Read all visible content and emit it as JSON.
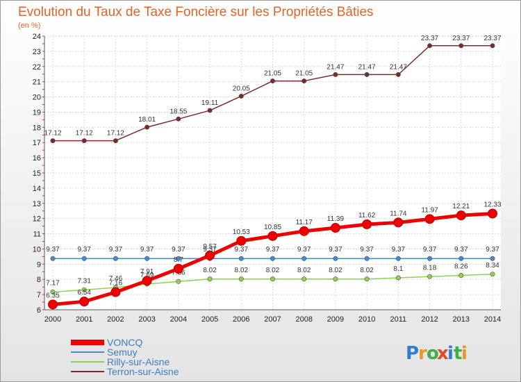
{
  "title": "Evolution du Taux de Taxe Foncière sur les Propriétés Bâties",
  "subtitle": "(en %)",
  "logo_text": "Proxiti",
  "colors": {
    "background_outer": "#e9e9e9",
    "plot_border": "#9a9a9a",
    "grid": "#d9d9d9",
    "title": "#e2622a",
    "legend_text": "#3c7fc4"
  },
  "chart_data": {
    "type": "line",
    "x": [
      2000,
      2001,
      2002,
      2003,
      2004,
      2005,
      2006,
      2007,
      2008,
      2009,
      2010,
      2011,
      2012,
      2013,
      2014
    ],
    "ylim": [
      6,
      24
    ],
    "yticks": [
      6,
      7,
      8,
      9,
      10,
      11,
      12,
      13,
      14,
      15,
      16,
      17,
      18,
      19,
      20,
      21,
      22,
      23,
      24
    ],
    "grid": true,
    "legend_position": "bottom-left",
    "series": [
      {
        "name": "Terron-sur-Aisne",
        "color": "#7a2a2a",
        "values": [
          17.12,
          17.12,
          17.12,
          18.01,
          18.55,
          19.11,
          20.05,
          21.05,
          21.05,
          21.47,
          21.47,
          21.47,
          23.37,
          23.37,
          23.37
        ],
        "labels": [
          "17.12",
          "17.12",
          "17.12",
          "18.01",
          "18.55",
          "19.11",
          "20.05",
          "21.05",
          "21.05",
          "21.47",
          "21.47",
          "21.47",
          "23.37",
          "23.37",
          "23.37"
        ]
      },
      {
        "name": "Semuy",
        "color": "#4a8ac9",
        "values": [
          9.37,
          9.37,
          9.37,
          9.37,
          9.37,
          9.37,
          9.37,
          9.37,
          9.37,
          9.37,
          9.37,
          9.37,
          9.37,
          9.37,
          9.37
        ],
        "labels": [
          "9.37",
          "9.37",
          "9.37",
          "9.37",
          "9.37",
          "9.37",
          "9.37",
          "9.37",
          "9.37",
          "9.37",
          "9.37",
          "9.37",
          "9.37",
          "9.37",
          "9.37"
        ]
      },
      {
        "name": "Rilly-sur-Aisne",
        "color": "#8fd14f",
        "values": [
          7.17,
          7.31,
          7.46,
          7.69,
          7.86,
          8.02,
          8.02,
          8.02,
          8.02,
          8.02,
          8.02,
          8.1,
          8.18,
          8.26,
          8.34
        ],
        "labels": [
          "7.17",
          "7.31",
          "7.46",
          "7.69",
          "7.86",
          "8.02",
          "8.02",
          "8.02",
          "8.02",
          "8.02",
          "8.02",
          "8.1",
          "8.18",
          "8.26",
          "8.34"
        ]
      },
      {
        "name": "VONCQ",
        "color": "#ee0000",
        "values": [
          6.35,
          6.54,
          7.16,
          7.91,
          8.7,
          9.57,
          10.53,
          10.85,
          11.17,
          11.39,
          11.62,
          11.74,
          11.97,
          12.21,
          12.33
        ],
        "labels": [
          "6.35",
          "6.54",
          "7.16",
          "7.91",
          "8.7",
          "9.57",
          "10.53",
          "10.85",
          "11.17",
          "11.39",
          "11.62",
          "11.74",
          "11.97",
          "12.21",
          "12.33"
        ]
      }
    ],
    "legend": [
      "VONCQ",
      "Semuy",
      "Rilly-sur-Aisne",
      "Terron-sur-Aisne"
    ]
  }
}
